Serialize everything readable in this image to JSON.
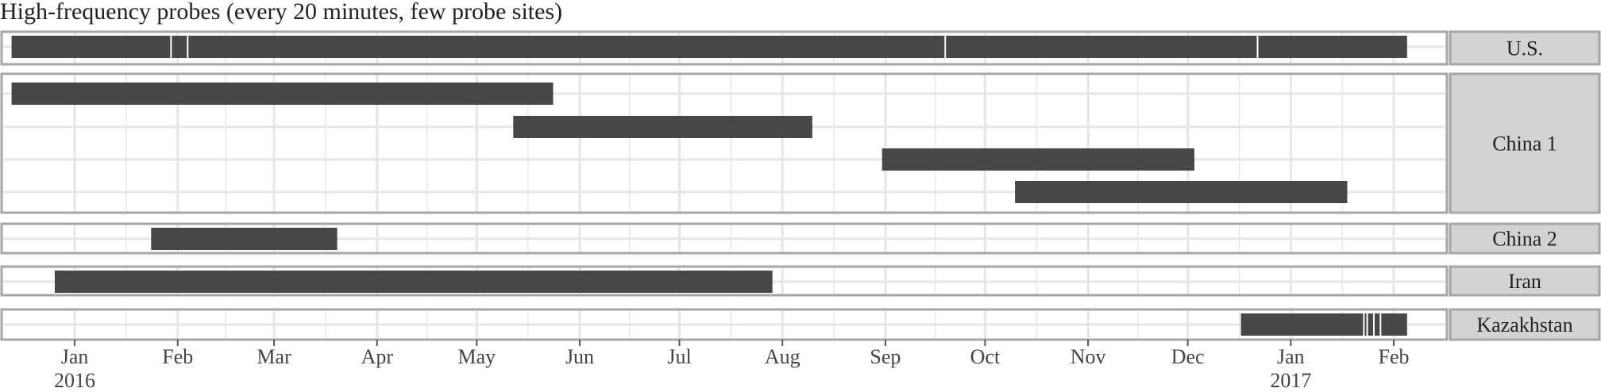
{
  "chart_data": {
    "type": "timeline",
    "title": "High-frequency probes (every 20 minutes, few probe sites)",
    "xlabel": "",
    "ylabel": "",
    "x_range": [
      "2015-12-10",
      "2017-02-17"
    ],
    "x_ticks": [
      {
        "date": "2016-01-01",
        "label": "Jan",
        "year": "2016"
      },
      {
        "date": "2016-02-01",
        "label": "Feb"
      },
      {
        "date": "2016-03-01",
        "label": "Mar"
      },
      {
        "date": "2016-04-01",
        "label": "Apr"
      },
      {
        "date": "2016-05-01",
        "label": "May"
      },
      {
        "date": "2016-06-01",
        "label": "Jun"
      },
      {
        "date": "2016-07-01",
        "label": "Jul"
      },
      {
        "date": "2016-08-01",
        "label": "Aug"
      },
      {
        "date": "2016-09-01",
        "label": "Sep"
      },
      {
        "date": "2016-10-01",
        "label": "Oct"
      },
      {
        "date": "2016-11-01",
        "label": "Nov"
      },
      {
        "date": "2016-12-01",
        "label": "Dec"
      },
      {
        "date": "2017-01-01",
        "label": "Jan",
        "year": "2017"
      },
      {
        "date": "2017-02-01",
        "label": "Feb"
      }
    ],
    "grid": true,
    "panels": [
      {
        "label": "U.S.",
        "sites": [
          {
            "intervals": [
              [
                "2015-12-13",
                "2017-02-05"
              ]
            ],
            "gaps": [
              "2016-01-30",
              "2016-02-04",
              "2016-09-19",
              "2016-12-22"
            ]
          }
        ]
      },
      {
        "label": "China 1",
        "sites": [
          {
            "intervals": [
              [
                "2015-12-13",
                "2016-05-24"
              ]
            ],
            "gaps": []
          },
          {
            "intervals": [
              [
                "2016-05-12",
                "2016-08-10"
              ]
            ],
            "gaps": []
          },
          {
            "intervals": [
              [
                "2016-08-31",
                "2016-12-03"
              ]
            ],
            "gaps": []
          },
          {
            "intervals": [
              [
                "2016-10-10",
                "2017-01-18"
              ]
            ],
            "gaps": []
          }
        ]
      },
      {
        "label": "China 2",
        "sites": [
          {
            "intervals": [
              [
                "2016-01-24",
                "2016-03-20"
              ]
            ],
            "gaps": []
          }
        ]
      },
      {
        "label": "Iran",
        "sites": [
          {
            "intervals": [
              [
                "2015-12-26",
                "2016-07-29"
              ]
            ],
            "gaps": []
          }
        ]
      },
      {
        "label": "Kazakhstan",
        "sites": [
          {
            "intervals": [
              [
                "2016-12-17",
                "2017-02-05"
              ]
            ],
            "gaps": [
              "2017-01-23",
              "2017-01-24",
              "2017-01-26",
              "2017-01-28"
            ]
          }
        ]
      }
    ],
    "colors": {
      "bar": "#474747",
      "grid": "#e6e6e6",
      "panel_border": "#a6a6a6",
      "strip_fill": "#d3d3d3",
      "text": "#222222"
    }
  }
}
